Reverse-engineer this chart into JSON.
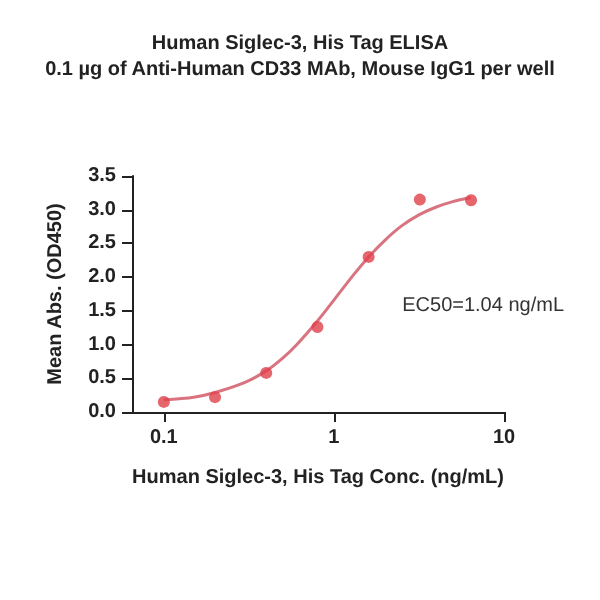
{
  "chart_data": {
    "type": "scatter",
    "title": "Human Siglec-3, His Tag ELISA",
    "subtitle": "0.1 µg of Anti-Human CD33 MAb, Mouse IgG1 per well",
    "xlabel": "Human Siglec-3, His Tag Conc. (ng/mL)",
    "ylabel": "Mean Abs. (OD450)",
    "annotations": [
      "EC50=1.04 ng/mL"
    ],
    "log": "x",
    "grid": false,
    "marker": "circle",
    "xlim": [
      0.065,
      10
    ],
    "xticks": [
      0.1,
      1,
      10
    ],
    "ylim": [
      0,
      3.5
    ],
    "yticks": [
      {
        "value": 0,
        "label": "0.0"
      },
      {
        "value": 0.5,
        "label": "0.5"
      },
      {
        "value": 1,
        "label": "1.0"
      },
      {
        "value": 1.5,
        "label": "1.5"
      },
      {
        "value": 2,
        "label": "2.0"
      },
      {
        "value": 2.5,
        "label": "2.5"
      },
      {
        "value": 3,
        "label": "3.0"
      },
      {
        "value": 3.5,
        "label": "3.5"
      }
    ],
    "series": [
      {
        "color": "#e0404a",
        "x": [
          0.1,
          0.2,
          0.4,
          0.8,
          1.6,
          3.2,
          6.4
        ],
        "values": [
          0.15,
          0.22,
          0.58,
          1.26,
          2.3,
          3.15,
          3.14
        ]
      },
      {
        "type": "line",
        "color": "#d9737f",
        "marker": "none",
        "x": [
          0.1,
          0.15,
          0.2,
          0.3,
          0.4,
          0.5,
          0.6,
          0.8,
          1,
          1.3,
          1.6,
          2,
          2.5,
          3.2,
          4,
          5,
          6.4
        ],
        "values": [
          0.18,
          0.22,
          0.29,
          0.44,
          0.61,
          0.8,
          0.99,
          1.35,
          1.66,
          2.03,
          2.3,
          2.55,
          2.76,
          2.93,
          3.04,
          3.12,
          3.18
        ]
      }
    ]
  }
}
